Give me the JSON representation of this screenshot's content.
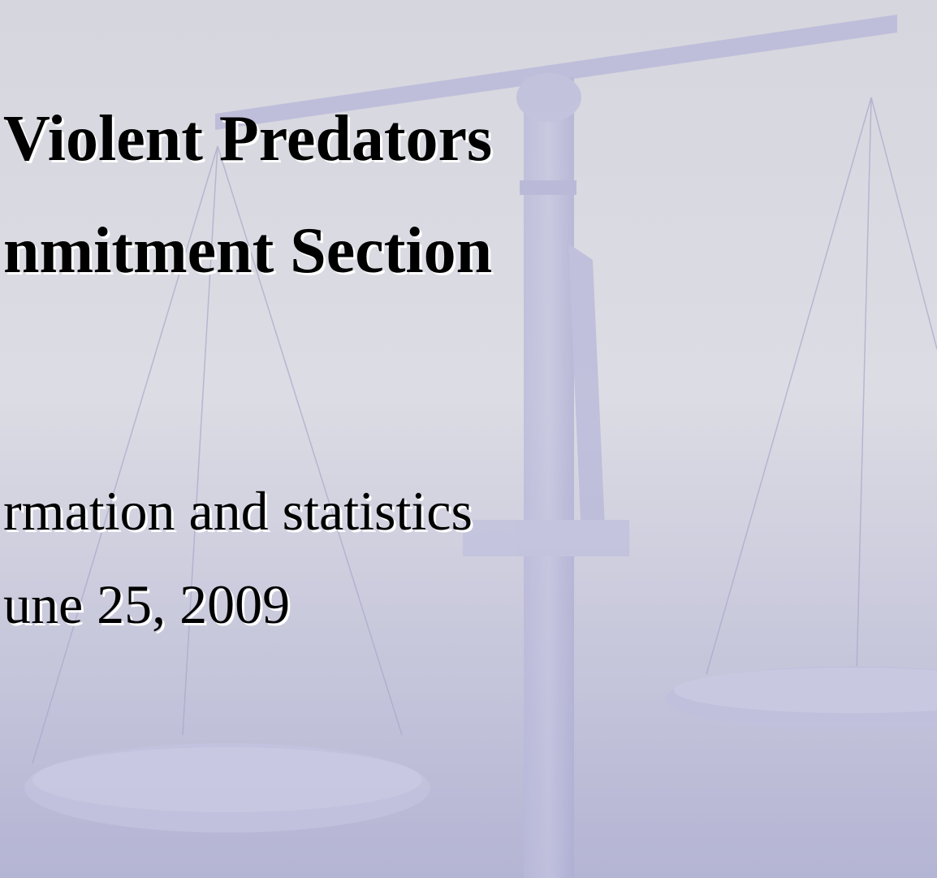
{
  "slide": {
    "title_lines": [
      "Violent Predators",
      "nmitment Section"
    ],
    "subtitle_lines": [
      "rmation and statistics",
      "une 25, 2009"
    ]
  }
}
